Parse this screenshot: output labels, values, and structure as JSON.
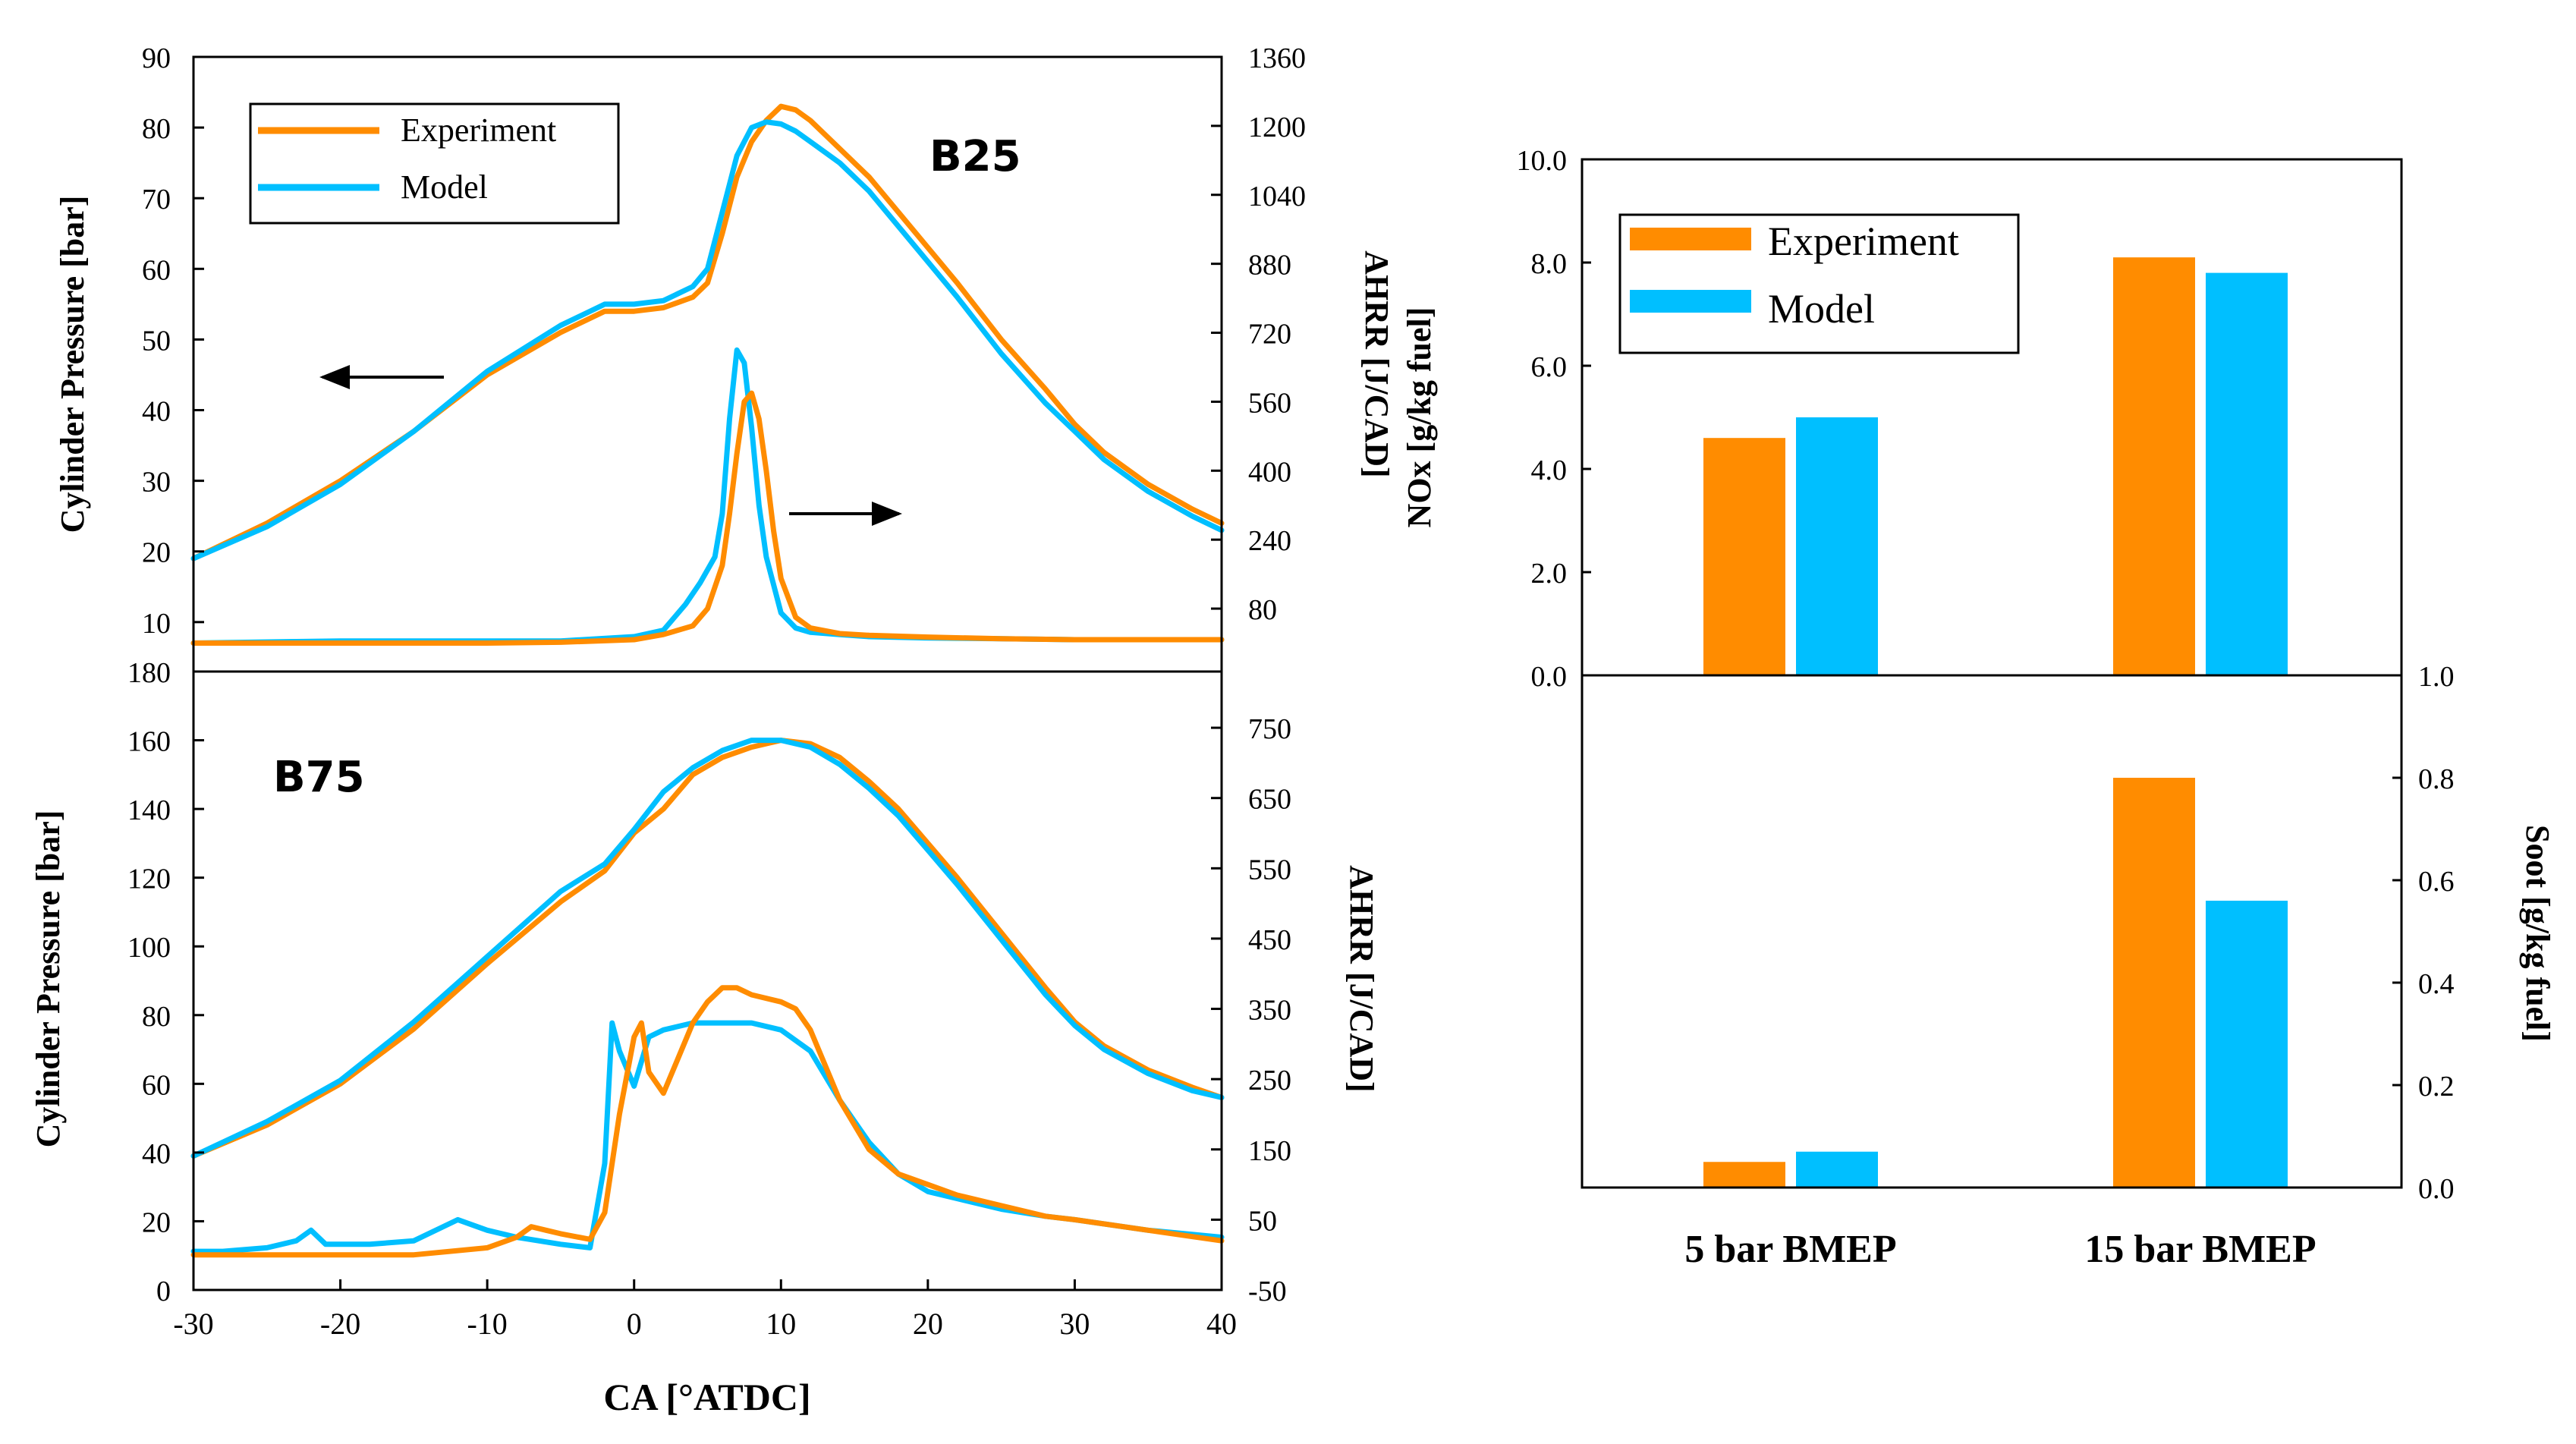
{
  "colors": {
    "experiment": "#FF8C00",
    "model": "#00BFFF",
    "axis": "#000000"
  },
  "chart_data": [
    {
      "id": "b25",
      "type": "line",
      "panel_label": "B25",
      "xlabel": "",
      "ylabel": "Cylinder Pressure [bar]",
      "ylabel_right": "AHRR [J/CAD]",
      "xlim": [
        -30,
        40
      ],
      "ylim": [
        3,
        90
      ],
      "ylim_right": [
        -66,
        1360
      ],
      "y_ticks": [
        10,
        20,
        30,
        40,
        50,
        60,
        70,
        80,
        90
      ],
      "y_tick_labels": [
        "10",
        "20",
        "30",
        "40",
        "50",
        "60",
        "70",
        "80",
        "90"
      ],
      "y_right_ticks": [
        80,
        240,
        400,
        560,
        720,
        880,
        1040,
        1200,
        1360
      ],
      "y_right_tick_labels": [
        "80",
        "240",
        "400",
        "560",
        "720",
        "880",
        "1040",
        "1200",
        "1360"
      ],
      "legend": {
        "position": "top-left",
        "entries": [
          "Experiment",
          "Model"
        ]
      },
      "annotations": [
        "left-arrow toward pressure axis",
        "right-arrow toward AHRR axis"
      ],
      "series": [
        {
          "name": "Experiment",
          "axis": "left",
          "quantity": "pressure",
          "x": [
            -30,
            -25,
            -20,
            -15,
            -10,
            -5,
            -2,
            0,
            2,
            4,
            5,
            6,
            7,
            8,
            9,
            10,
            11,
            12,
            14,
            16,
            18,
            20,
            22,
            25,
            28,
            30,
            32,
            35,
            38,
            40
          ],
          "y": [
            19,
            24,
            30,
            37,
            45,
            51,
            54,
            54,
            54.5,
            56,
            58,
            65,
            73,
            78,
            81,
            83,
            82.5,
            81,
            77,
            73,
            68,
            63,
            58,
            50,
            43,
            38,
            34,
            29.5,
            26,
            24
          ]
        },
        {
          "name": "Model",
          "axis": "left",
          "quantity": "pressure",
          "x": [
            -30,
            -25,
            -20,
            -15,
            -10,
            -5,
            -2,
            0,
            2,
            4,
            5,
            6,
            7,
            8,
            9,
            10,
            11,
            12,
            14,
            16,
            18,
            20,
            22,
            25,
            28,
            30,
            32,
            35,
            38,
            40
          ],
          "y": [
            19,
            23.5,
            29.5,
            37,
            45.5,
            52,
            55,
            55,
            55.5,
            57.5,
            60,
            68,
            76,
            80,
            80.8,
            80.5,
            79.5,
            78,
            75,
            71,
            66,
            61,
            56,
            48,
            41,
            37,
            33,
            28.5,
            25,
            23
          ]
        },
        {
          "name": "Experiment",
          "axis": "right",
          "quantity": "AHRR",
          "x": [
            -30,
            -20,
            -10,
            -5,
            0,
            2,
            4,
            5,
            6,
            6.5,
            7,
            7.5,
            8,
            8.5,
            9,
            9.5,
            10,
            11,
            12,
            14,
            16,
            20,
            25,
            30,
            35,
            40
          ],
          "y": [
            0,
            0,
            0,
            2,
            8,
            20,
            40,
            80,
            180,
            300,
            440,
            560,
            580,
            520,
            400,
            260,
            150,
            60,
            35,
            22,
            18,
            14,
            10,
            8,
            8,
            8
          ]
        },
        {
          "name": "Model",
          "axis": "right",
          "quantity": "AHRR",
          "x": [
            -30,
            -20,
            -10,
            -5,
            0,
            2,
            3.5,
            4.5,
            5.5,
            6,
            6.5,
            7,
            7.5,
            8,
            8.5,
            9,
            10,
            11,
            12,
            14,
            16,
            20,
            25,
            30,
            35,
            40
          ],
          "y": [
            0,
            5,
            5,
            5,
            15,
            30,
            90,
            140,
            200,
            300,
            520,
            680,
            650,
            500,
            320,
            200,
            70,
            35,
            25,
            20,
            15,
            12,
            10,
            8,
            8,
            8
          ]
        }
      ]
    },
    {
      "id": "b75",
      "type": "line",
      "panel_label": "B75",
      "xlabel": "CA [°ATDC]",
      "ylabel": "Cylinder Pressure [bar]",
      "ylabel_right": "AHRR [J/CAD]",
      "xlim": [
        -30,
        40
      ],
      "ylim": [
        0,
        180
      ],
      "ylim_right": [
        -50,
        830
      ],
      "x_ticks": [
        -30,
        -20,
        -10,
        0,
        10,
        20,
        30,
        40
      ],
      "x_tick_labels": [
        "-30",
        "-20",
        "-10",
        "0",
        "10",
        "20",
        "30",
        "40"
      ],
      "y_ticks": [
        0,
        20,
        40,
        60,
        80,
        100,
        120,
        140,
        160,
        180
      ],
      "y_tick_labels": [
        "0",
        "20",
        "40",
        "60",
        "80",
        "100",
        "120",
        "140",
        "160",
        "180"
      ],
      "y_right_ticks": [
        -50,
        50,
        150,
        250,
        350,
        450,
        550,
        650,
        750
      ],
      "y_right_tick_labels": [
        "-50",
        "50",
        "150",
        "250",
        "350",
        "450",
        "550",
        "650",
        "750"
      ],
      "series": [
        {
          "name": "Experiment",
          "axis": "left",
          "quantity": "pressure",
          "x": [
            -30,
            -25,
            -20,
            -15,
            -10,
            -5,
            -2,
            0,
            2,
            4,
            6,
            8,
            10,
            12,
            14,
            16,
            18,
            20,
            22,
            25,
            28,
            30,
            32,
            35,
            38,
            40
          ],
          "y": [
            39,
            48,
            60,
            76,
            95,
            113,
            122,
            133,
            140,
            150,
            155,
            158,
            160,
            159,
            155,
            148,
            140,
            130,
            120,
            104,
            88,
            78,
            71,
            64,
            59,
            56
          ]
        },
        {
          "name": "Model",
          "axis": "left",
          "quantity": "pressure",
          "x": [
            -30,
            -25,
            -20,
            -15,
            -10,
            -5,
            -2,
            0,
            2,
            4,
            6,
            8,
            10,
            12,
            14,
            16,
            18,
            20,
            22,
            25,
            28,
            30,
            32,
            35,
            38,
            40
          ],
          "y": [
            39,
            49,
            61,
            78,
            97,
            116,
            124,
            134,
            145,
            152,
            157,
            160,
            160,
            158,
            153,
            146,
            138,
            128,
            118,
            102,
            86,
            77,
            70,
            63,
            58,
            56
          ]
        },
        {
          "name": "Experiment",
          "axis": "right",
          "quantity": "AHRR",
          "x": [
            -30,
            -25,
            -20,
            -15,
            -10,
            -8,
            -7,
            -6,
            -5,
            -3,
            -2,
            -1,
            0,
            0.5,
            1,
            2,
            3,
            4,
            5,
            6,
            7,
            8,
            10,
            11,
            12,
            14,
            16,
            18,
            20,
            22,
            25,
            28,
            30,
            35,
            40
          ],
          "y": [
            0,
            0,
            0,
            0,
            10,
            25,
            40,
            35,
            30,
            22,
            60,
            200,
            310,
            330,
            260,
            230,
            280,
            330,
            360,
            380,
            380,
            370,
            360,
            350,
            320,
            220,
            150,
            115,
            100,
            85,
            70,
            55,
            50,
            35,
            20
          ]
        },
        {
          "name": "Model",
          "axis": "right",
          "quantity": "AHRR",
          "x": [
            -30,
            -28,
            -25,
            -23,
            -22,
            -21,
            -20,
            -18,
            -15,
            -13,
            -12,
            -10,
            -8,
            -5,
            -3,
            -2,
            -1.5,
            -1,
            0,
            1,
            2,
            4,
            6,
            8,
            10,
            12,
            14,
            16,
            18,
            20,
            22,
            25,
            28,
            30,
            35,
            40
          ],
          "y": [
            5,
            5,
            10,
            20,
            35,
            15,
            15,
            15,
            20,
            40,
            50,
            35,
            25,
            15,
            10,
            130,
            330,
            290,
            240,
            310,
            320,
            330,
            330,
            330,
            320,
            290,
            220,
            160,
            115,
            90,
            80,
            65,
            55,
            50,
            35,
            25
          ]
        }
      ]
    },
    {
      "id": "nox",
      "type": "bar",
      "categories": [
        "5 bar BMEP",
        "15 bar BMEP"
      ],
      "ylabel": "NOx [g/kg fuel]",
      "ylim": [
        0,
        10
      ],
      "y_ticks": [
        0,
        2,
        4,
        6,
        8,
        10
      ],
      "y_tick_labels": [
        "0.0",
        "2.0",
        "4.0",
        "6.0",
        "8.0",
        "10.0"
      ],
      "legend": {
        "position": "top-left",
        "entries": [
          "Experiment",
          "Model"
        ]
      },
      "series": [
        {
          "name": "Experiment",
          "values": [
            4.6,
            8.1
          ]
        },
        {
          "name": "Model",
          "values": [
            5.0,
            7.8
          ]
        }
      ]
    },
    {
      "id": "soot",
      "type": "bar",
      "categories": [
        "5 bar BMEP",
        "15 bar BMEP"
      ],
      "xlabel_ticks": [
        "5 bar BMEP",
        "15 bar BMEP"
      ],
      "ylabel": "Soot [g/kg fuel]",
      "ylim": [
        0,
        1.0
      ],
      "y_ticks": [
        0,
        0.2,
        0.4,
        0.6,
        0.8,
        1.0
      ],
      "y_tick_labels": [
        "0.0",
        "0.2",
        "0.4",
        "0.6",
        "0.8",
        "1.0"
      ],
      "series": [
        {
          "name": "Experiment",
          "values": [
            0.05,
            0.8
          ]
        },
        {
          "name": "Model",
          "values": [
            0.07,
            0.56
          ]
        }
      ]
    }
  ]
}
